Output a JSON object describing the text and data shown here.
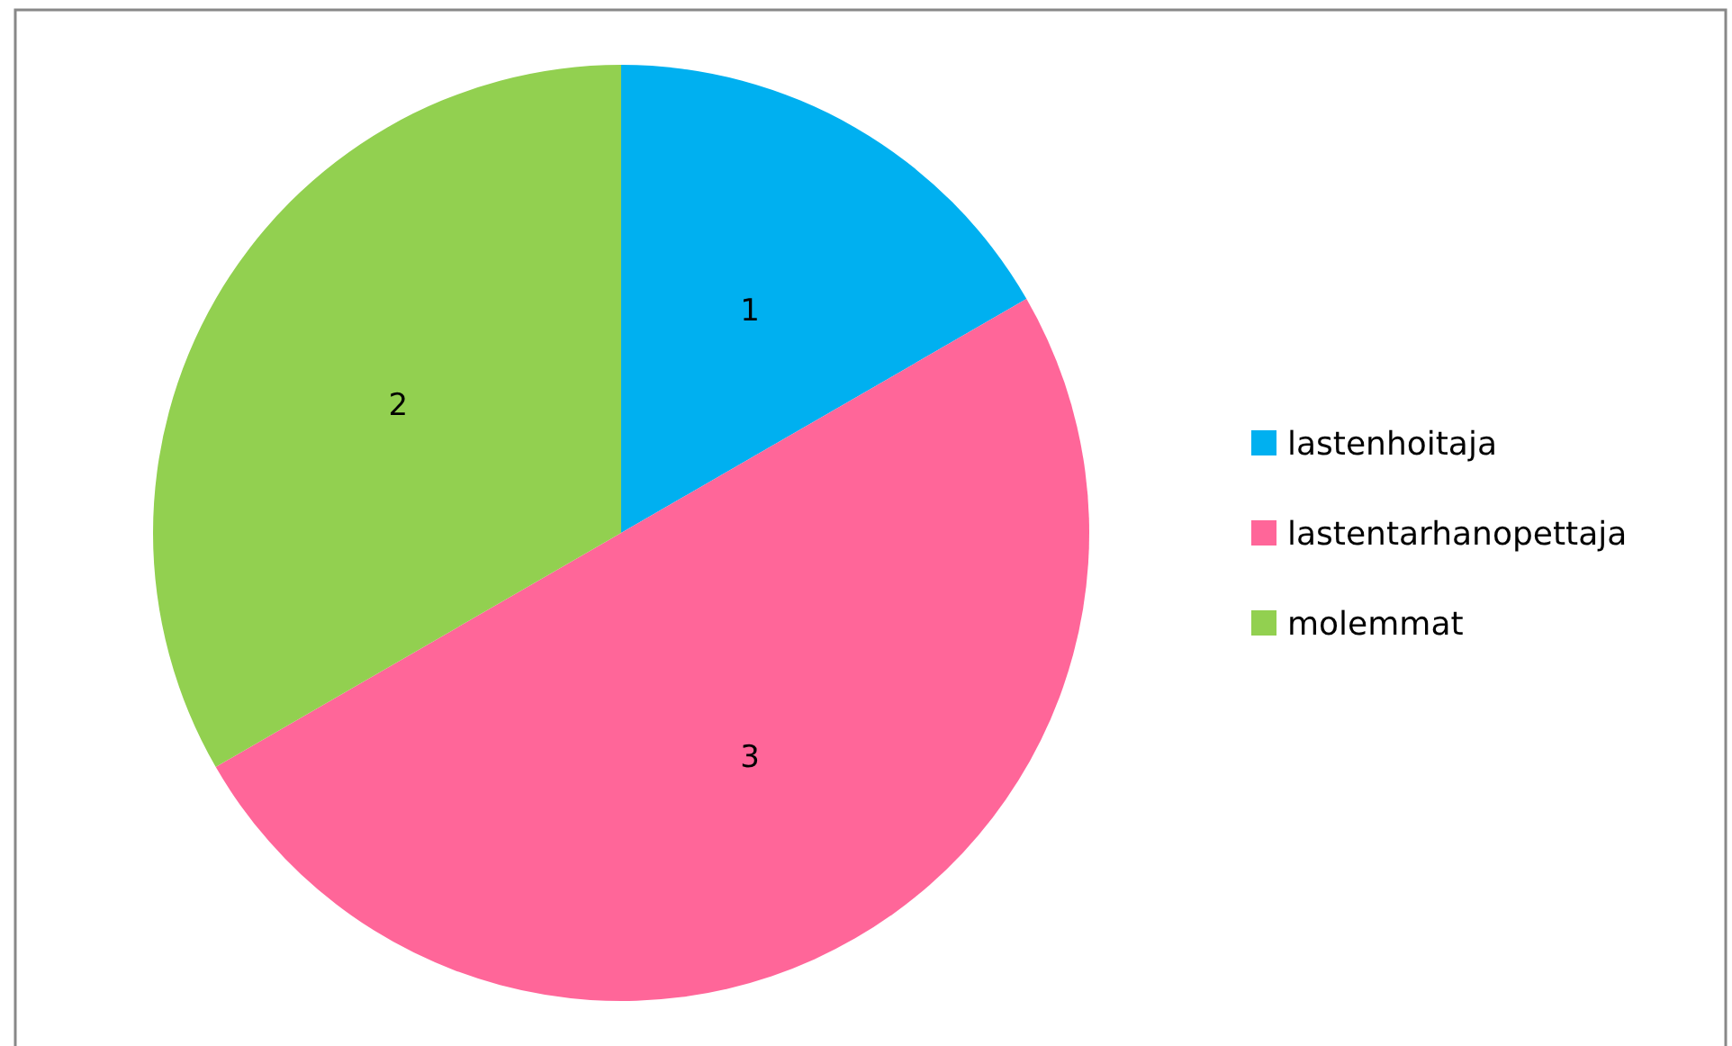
{
  "chart_data": {
    "type": "pie",
    "categories": [
      "lastenhoitaja",
      "lastentarhanopettaja",
      "molemmat"
    ],
    "values": [
      1,
      3,
      2
    ],
    "colors": [
      "#00b0f0",
      "#ff6699",
      "#92d050"
    ],
    "data_labels": true,
    "legend": "right"
  }
}
